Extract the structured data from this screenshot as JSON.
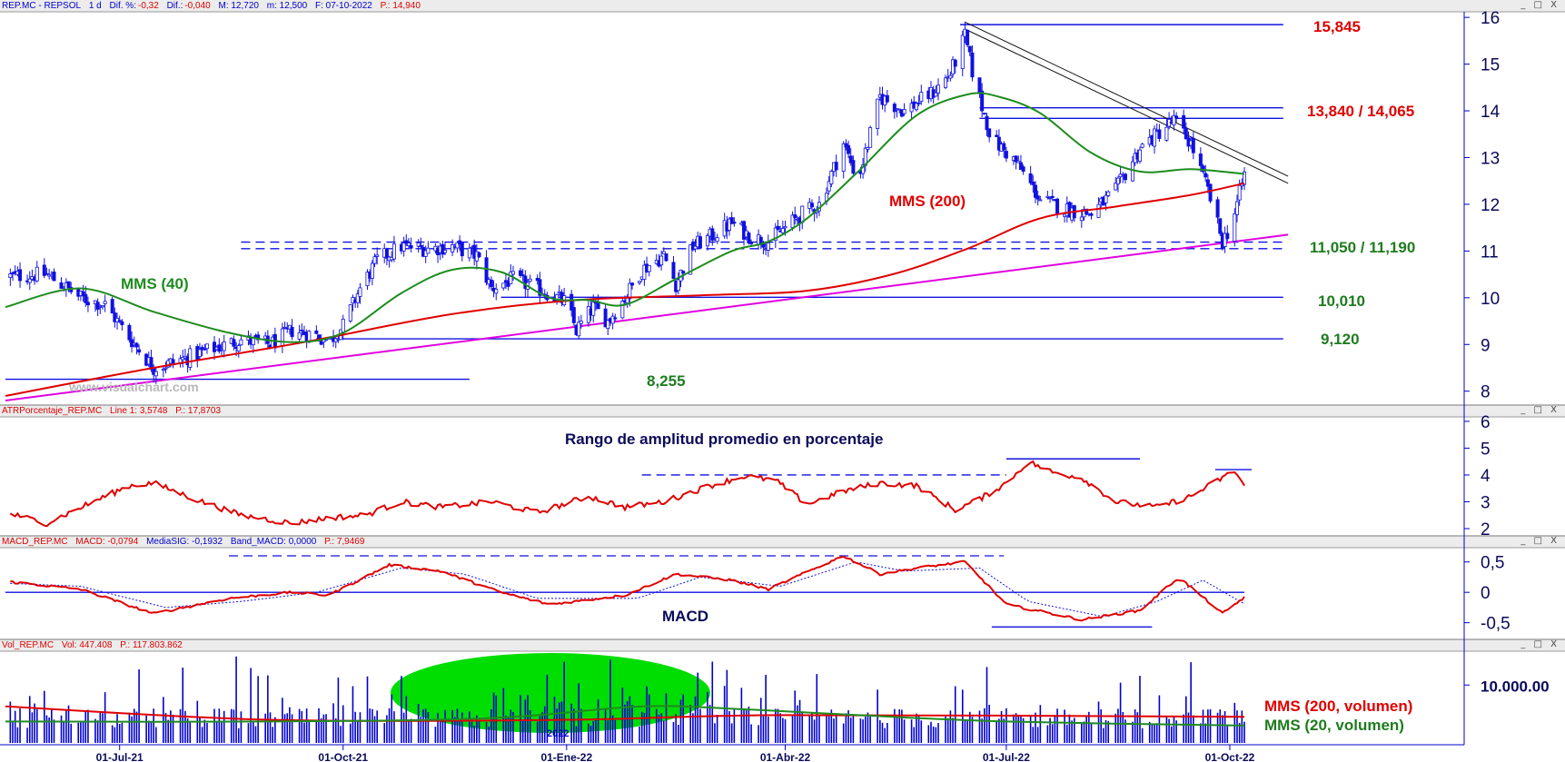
{
  "window": {
    "price_header": {
      "symbol": "REP.MC - REPSOL",
      "period": "1 d",
      "dif_pct_label": "Dif. %:",
      "dif_pct": "-0,32",
      "dif_label": "Dif.:",
      "dif": "-0,040",
      "max": "M: 12,720",
      "min": "m: 12,500",
      "date": "F: 07-10-2022",
      "price": "P.: 14,940"
    },
    "atr_header": {
      "name": "ATRPorcentaje_REP.MC",
      "line": "Line 1: 3,5748",
      "p": "P.: 17,8703"
    },
    "macd_header": {
      "name": "MACD_REP.MC",
      "macd": "MACD: -0,0794",
      "signal": "MediaSIG: -0,1932",
      "band": "Band_MACD: 0,0000",
      "p": "P.: 7,9469"
    },
    "vol_header": {
      "name": "Vol_REP.MC",
      "vol": "Vol: 447.408",
      "p": "P.: 117.803.862"
    },
    "window_controls": "_ □ X",
    "watermark": "www.visualchart.com"
  },
  "annotations": {
    "mms40": "MMS (40)",
    "mms200": "MMS (200)",
    "atr_title": "Rango de amplitud promedio en porcentaje",
    "macd_title": "MACD",
    "vol_mms200": "MMS (200, volumen)",
    "vol_mms20": "MMS (20, volumen)",
    "year_label": "2022"
  },
  "levels": {
    "l15845": "15,845",
    "l13840": "13,840 / 14,065",
    "l11050": "11,050 / 11,190",
    "l10010": "10,010",
    "l9120": "9,120",
    "l8255": "8,255"
  },
  "colors": {
    "candles": "#1010e0",
    "sma40": "#1e8c1e",
    "sma200": "#e00000",
    "trend_support": "#e000e0",
    "red_label": "#e00000",
    "green_label": "#1e7c1e",
    "volume_ellipse": "#00dd00",
    "axis": "#0000cc"
  },
  "chart_data": [
    {
      "type": "candlestick",
      "x_ticks": [
        "01-Jul-21",
        "01-Oct-21",
        "01-Ene-22",
        "01-Abr-22",
        "01-Jul-22",
        "01-Oct-22"
      ],
      "y_ticks": [
        8,
        9,
        10,
        11,
        12,
        13,
        14,
        15,
        16
      ],
      "ylim": [
        7.8,
        16.1
      ],
      "close_points": [
        [
          "2021-05-15",
          10.45
        ],
        [
          "2021-06-01",
          10.5
        ],
        [
          "2021-06-15",
          10.0
        ],
        [
          "2021-06-25",
          9.85
        ],
        [
          "2021-07-05",
          9.15
        ],
        [
          "2021-07-15",
          8.5
        ],
        [
          "2021-07-22",
          8.6
        ],
        [
          "2021-08-05",
          8.85
        ],
        [
          "2021-08-20",
          9.1
        ],
        [
          "2021-09-01",
          9.0
        ],
        [
          "2021-09-10",
          9.3
        ],
        [
          "2021-09-20",
          9.2
        ],
        [
          "2021-09-25",
          9.05
        ],
        [
          "2021-10-01",
          9.4
        ],
        [
          "2021-10-08",
          10.2
        ],
        [
          "2021-10-15",
          10.8
        ],
        [
          "2021-10-25",
          11.1
        ],
        [
          "2021-11-05",
          11.05
        ],
        [
          "2021-11-15",
          11.1
        ],
        [
          "2021-11-25",
          10.9
        ],
        [
          "2021-12-01",
          10.2
        ],
        [
          "2021-12-10",
          10.4
        ],
        [
          "2021-12-20",
          10.2
        ],
        [
          "2022-01-01",
          9.9
        ],
        [
          "2022-01-05",
          9.3
        ],
        [
          "2022-01-12",
          9.8
        ],
        [
          "2022-01-18",
          9.5
        ],
        [
          "2022-01-25",
          10.0
        ],
        [
          "2022-02-01",
          10.6
        ],
        [
          "2022-02-10",
          10.9
        ],
        [
          "2022-02-15",
          10.3
        ],
        [
          "2022-02-22",
          11.1
        ],
        [
          "2022-03-01",
          11.3
        ],
        [
          "2022-03-10",
          11.6
        ],
        [
          "2022-03-18",
          11.3
        ],
        [
          "2022-03-25",
          11.2
        ],
        [
          "2022-04-01",
          11.5
        ],
        [
          "2022-04-08",
          11.8
        ],
        [
          "2022-04-15",
          12.0
        ],
        [
          "2022-04-25",
          13.3
        ],
        [
          "2022-05-01",
          12.5
        ],
        [
          "2022-05-10",
          14.3
        ],
        [
          "2022-05-20",
          14.0
        ],
        [
          "2022-06-01",
          14.4
        ],
        [
          "2022-06-08",
          14.8
        ],
        [
          "2022-06-14",
          15.6
        ],
        [
          "2022-06-18",
          14.6
        ],
        [
          "2022-06-25",
          13.4
        ],
        [
          "2022-07-05",
          12.9
        ],
        [
          "2022-07-15",
          12.1
        ],
        [
          "2022-07-25",
          11.9
        ],
        [
          "2022-08-05",
          11.8
        ],
        [
          "2022-08-15",
          12.3
        ],
        [
          "2022-08-25",
          13.2
        ],
        [
          "2022-09-01",
          13.5
        ],
        [
          "2022-09-08",
          13.8
        ],
        [
          "2022-09-15",
          13.3
        ],
        [
          "2022-09-22",
          12.3
        ],
        [
          "2022-09-28",
          11.2
        ],
        [
          "2022-10-02",
          11.6
        ],
        [
          "2022-10-07",
          12.65
        ]
      ],
      "series": [
        {
          "name": "MMS (40)",
          "points": [
            [
              "2021-05-15",
              9.8
            ],
            [
              "2021-06-15",
              10.2
            ],
            [
              "2021-07-15",
              9.7
            ],
            [
              "2021-08-15",
              9.25
            ],
            [
              "2021-09-10",
              9.05
            ],
            [
              "2021-10-01",
              9.25
            ],
            [
              "2021-10-25",
              10.1
            ],
            [
              "2021-11-15",
              10.6
            ],
            [
              "2021-12-05",
              10.55
            ],
            [
              "2021-12-25",
              10.0
            ],
            [
              "2022-01-10",
              9.95
            ],
            [
              "2022-01-25",
              9.85
            ],
            [
              "2022-02-15",
              10.4
            ],
            [
              "2022-03-10",
              11.0
            ],
            [
              "2022-03-25",
              11.2
            ],
            [
              "2022-04-10",
              11.7
            ],
            [
              "2022-05-01",
              12.7
            ],
            [
              "2022-05-25",
              13.9
            ],
            [
              "2022-06-15",
              14.35
            ],
            [
              "2022-06-28",
              14.3
            ],
            [
              "2022-07-15",
              13.95
            ],
            [
              "2022-08-05",
              13.1
            ],
            [
              "2022-08-25",
              12.7
            ],
            [
              "2022-09-15",
              12.75
            ],
            [
              "2022-10-07",
              12.65
            ]
          ]
        },
        {
          "name": "MMS (200)",
          "points": [
            [
              "2021-05-15",
              7.9
            ],
            [
              "2021-07-15",
              8.5
            ],
            [
              "2021-09-15",
              9.05
            ],
            [
              "2021-11-15",
              9.65
            ],
            [
              "2022-01-05",
              9.95
            ],
            [
              "2022-02-25",
              10.05
            ],
            [
              "2022-04-10",
              10.15
            ],
            [
              "2022-05-15",
              10.5
            ],
            [
              "2022-06-15",
              11.05
            ],
            [
              "2022-07-15",
              11.7
            ],
            [
              "2022-08-15",
              11.95
            ],
            [
              "2022-09-15",
              12.2
            ],
            [
              "2022-10-07",
              12.45
            ]
          ]
        }
      ],
      "trendlines": [
        {
          "points": [
            [
              "2021-05-15",
              7.8
            ],
            [
              "2022-10-25",
              11.35
            ]
          ],
          "color": "#e000e0"
        },
        {
          "points": [
            [
              "2022-06-14",
              15.9
            ],
            [
              "2022-10-25",
              12.6
            ]
          ],
          "color": "#111111"
        },
        {
          "points": [
            [
              "2022-06-14",
              15.75
            ],
            [
              "2022-10-25",
              12.45
            ]
          ],
          "color": "#111111"
        }
      ],
      "levels": [
        {
          "y": 15.845,
          "from": "2022-06-12",
          "to": "2022-10-23",
          "style": "solid"
        },
        {
          "y": 14.065,
          "from": "2022-06-20",
          "to": "2022-10-23",
          "style": "solid"
        },
        {
          "y": 13.84,
          "from": "2022-06-20",
          "to": "2022-10-23",
          "style": "solid"
        },
        {
          "y": 11.19,
          "from": "2021-08-20",
          "to": "2022-10-23",
          "style": "dashed"
        },
        {
          "y": 11.05,
          "from": "2021-08-20",
          "to": "2022-10-23",
          "style": "dashed"
        },
        {
          "y": 10.01,
          "from": "2021-12-05",
          "to": "2022-10-23",
          "style": "solid"
        },
        {
          "y": 9.12,
          "from": "2021-09-20",
          "to": "2022-10-23",
          "style": "solid"
        },
        {
          "y": 8.255,
          "from": "2021-05-15",
          "to": "2021-11-22",
          "style": "solid"
        }
      ]
    },
    {
      "type": "line",
      "name": "ATRPorcentaje_REP.MC",
      "y_ticks": [
        2,
        3,
        4,
        5,
        6
      ],
      "ylim": [
        1.9,
        6.2
      ],
      "points": [
        [
          "2021-05-15",
          2.6
        ],
        [
          "2021-06-01",
          2.2
        ],
        [
          "2021-06-20",
          3.0
        ],
        [
          "2021-07-05",
          3.6
        ],
        [
          "2021-07-15",
          3.7
        ],
        [
          "2021-08-01",
          3.1
        ],
        [
          "2021-08-20",
          2.5
        ],
        [
          "2021-09-10",
          2.2
        ],
        [
          "2021-09-25",
          2.4
        ],
        [
          "2021-10-10",
          2.5
        ],
        [
          "2021-10-25",
          3.0
        ],
        [
          "2021-11-10",
          2.8
        ],
        [
          "2021-12-01",
          3.0
        ],
        [
          "2021-12-20",
          2.6
        ],
        [
          "2022-01-10",
          3.2
        ],
        [
          "2022-01-25",
          2.8
        ],
        [
          "2022-02-10",
          3.0
        ],
        [
          "2022-03-01",
          3.6
        ],
        [
          "2022-03-15",
          3.95
        ],
        [
          "2022-03-28",
          3.8
        ],
        [
          "2022-04-10",
          2.9
        ],
        [
          "2022-04-25",
          3.4
        ],
        [
          "2022-05-10",
          3.7
        ],
        [
          "2022-05-25",
          3.6
        ],
        [
          "2022-06-10",
          2.7
        ],
        [
          "2022-06-20",
          3.1
        ],
        [
          "2022-07-01",
          3.7
        ],
        [
          "2022-07-10",
          4.5
        ],
        [
          "2022-07-20",
          4.1
        ],
        [
          "2022-08-01",
          3.9
        ],
        [
          "2022-08-15",
          3.0
        ],
        [
          "2022-09-01",
          2.8
        ],
        [
          "2022-09-15",
          3.2
        ],
        [
          "2022-09-28",
          3.9
        ],
        [
          "2022-10-03",
          4.15
        ],
        [
          "2022-10-07",
          3.6
        ]
      ],
      "levels": [
        {
          "y": 4.0,
          "from": "2022-02-01",
          "to": "2022-07-01",
          "style": "dashed"
        },
        {
          "y": 4.6,
          "from": "2022-07-01",
          "to": "2022-08-25",
          "style": "solid"
        },
        {
          "y": 4.2,
          "from": "2022-09-25",
          "to": "2022-10-10",
          "style": "solid"
        }
      ]
    },
    {
      "type": "line",
      "name": "MACD_REP.MC",
      "y_ticks": [
        -0.5,
        0,
        0.5
      ],
      "ylim": [
        -0.7,
        0.75
      ],
      "series": [
        {
          "name": "MACD",
          "points": [
            [
              "2021-05-15",
              0.18
            ],
            [
              "2021-06-15",
              0.05
            ],
            [
              "2021-07-15",
              -0.35
            ],
            [
              "2021-08-15",
              -0.1
            ],
            [
              "2021-09-10",
              0.0
            ],
            [
              "2021-09-25",
              -0.05
            ],
            [
              "2021-10-20",
              0.45
            ],
            [
              "2021-11-10",
              0.35
            ],
            [
              "2021-12-05",
              0.0
            ],
            [
              "2021-12-25",
              -0.2
            ],
            [
              "2022-01-25",
              -0.05
            ],
            [
              "2022-02-15",
              0.3
            ],
            [
              "2022-03-10",
              0.2
            ],
            [
              "2022-03-25",
              0.05
            ],
            [
              "2022-04-25",
              0.6
            ],
            [
              "2022-05-10",
              0.3
            ],
            [
              "2022-05-25",
              0.4
            ],
            [
              "2022-06-14",
              0.5
            ],
            [
              "2022-07-01",
              -0.2
            ],
            [
              "2022-08-01",
              -0.45
            ],
            [
              "2022-08-25",
              -0.3
            ],
            [
              "2022-09-10",
              0.25
            ],
            [
              "2022-09-28",
              -0.35
            ],
            [
              "2022-10-07",
              -0.08
            ]
          ]
        },
        {
          "name": "MediaSIG",
          "points": [
            [
              "2021-05-15",
              0.15
            ],
            [
              "2021-06-15",
              0.1
            ],
            [
              "2021-07-20",
              -0.25
            ],
            [
              "2021-08-20",
              -0.15
            ],
            [
              "2021-09-20",
              0.0
            ],
            [
              "2021-10-25",
              0.4
            ],
            [
              "2021-11-20",
              0.3
            ],
            [
              "2021-12-20",
              -0.1
            ],
            [
              "2022-01-30",
              -0.1
            ],
            [
              "2022-02-25",
              0.25
            ],
            [
              "2022-03-30",
              0.1
            ],
            [
              "2022-04-30",
              0.5
            ],
            [
              "2022-05-20",
              0.35
            ],
            [
              "2022-06-20",
              0.4
            ],
            [
              "2022-07-10",
              -0.15
            ],
            [
              "2022-08-10",
              -0.4
            ],
            [
              "2022-09-01",
              -0.15
            ],
            [
              "2022-09-20",
              0.2
            ],
            [
              "2022-10-07",
              -0.19
            ]
          ]
        }
      ],
      "levels": [
        {
          "y": 0.6,
          "from": "2021-08-15",
          "to": "2022-06-30",
          "style": "dashed"
        },
        {
          "y": 0.0,
          "from": "2021-05-15",
          "to": "2022-10-07",
          "style": "solid"
        },
        {
          "y": -0.57,
          "from": "2022-06-25",
          "to": "2022-08-30",
          "style": "solid"
        }
      ]
    },
    {
      "type": "bar",
      "name": "Vol_REP.MC",
      "y_ticks": [
        "10.000.00"
      ],
      "ylim": [
        0,
        16000000
      ],
      "bar_color": "#0000cc",
      "series": [
        {
          "name": "MMS (200, volumen)",
          "points": [
            [
              "2021-05-15",
              6300000
            ],
            [
              "2021-09-01",
              4000000
            ],
            [
              "2022-01-01",
              4000000
            ],
            [
              "2022-04-01",
              4800000
            ],
            [
              "2022-10-07",
              4500000
            ]
          ]
        },
        {
          "name": "MMS (20, volumen)",
          "points": [
            [
              "2021-05-15",
              3700000
            ],
            [
              "2021-09-01",
              3700000
            ],
            [
              "2021-12-01",
              4300000
            ],
            [
              "2022-02-01",
              6300000
            ],
            [
              "2022-03-15",
              5800000
            ],
            [
              "2022-05-01",
              4800000
            ],
            [
              "2022-07-01",
              3700000
            ],
            [
              "2022-10-07",
              3000000
            ]
          ]
        }
      ]
    }
  ]
}
